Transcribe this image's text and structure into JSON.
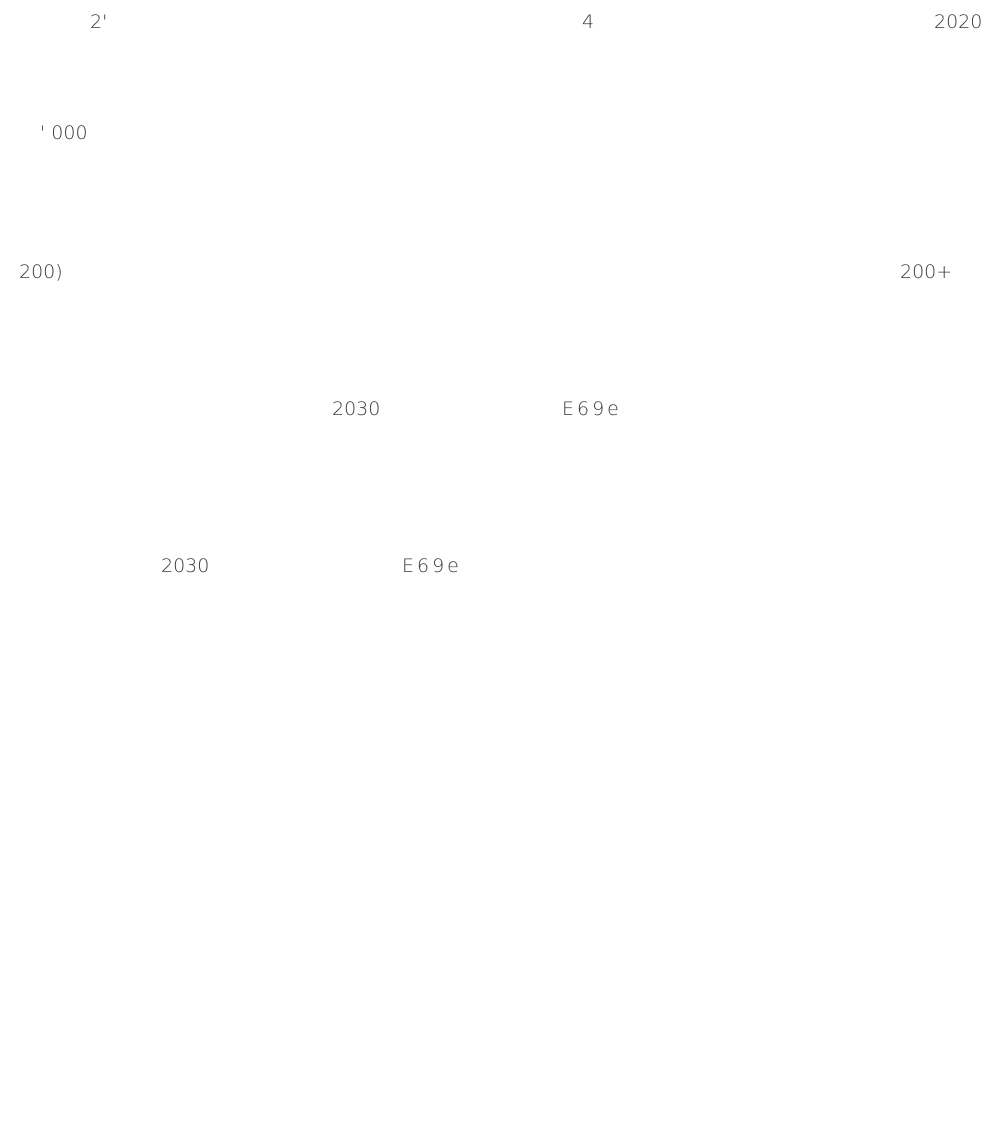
{
  "fragments": {
    "top_left": "2'",
    "top_mid": "4",
    "top_right": "2020",
    "row2": "' 000",
    "row3_left": "200)",
    "row3_right": "200+",
    "row4_a": "2030",
    "row4_b": "E69e",
    "row5_a": "2030",
    "row5_b": "E69e"
  },
  "colors": {
    "background": "#ffffff",
    "text": "#3a3a3a"
  }
}
